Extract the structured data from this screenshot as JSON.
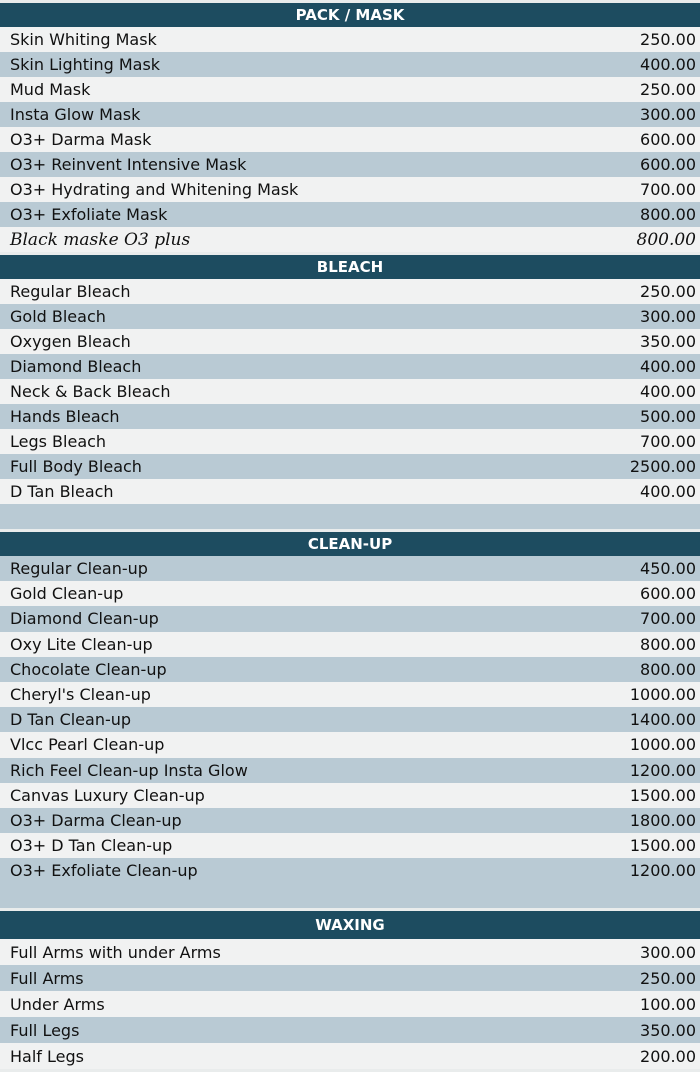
{
  "sections": [
    {
      "title": "PACK / MASK",
      "items": [
        {
          "name": "Skin Whiting Mask",
          "price": "250.00"
        },
        {
          "name": "Skin Lighting Mask",
          "price": "400.00"
        },
        {
          "name": "Mud Mask",
          "price": "250.00"
        },
        {
          "name": "Insta Glow Mask",
          "price": "300.00"
        },
        {
          "name": "O3+ Darma Mask",
          "price": "600.00"
        },
        {
          "name": "O3+ Reinvent Intensive Mask",
          "price": "600.00"
        },
        {
          "name": "O3+ Hydrating and Whitening Mask",
          "price": "700.00"
        },
        {
          "name": "O3+ Exfoliate Mask",
          "price": "800.00"
        },
        {
          "name": "Black maske O3 plus",
          "price": "800.00",
          "handwritten": true
        }
      ]
    },
    {
      "title": "BLEACH",
      "items": [
        {
          "name": "Regular Bleach",
          "price": "250.00"
        },
        {
          "name": "Gold Bleach",
          "price": "300.00"
        },
        {
          "name": "Oxygen Bleach",
          "price": "350.00"
        },
        {
          "name": "Diamond Bleach",
          "price": "400.00"
        },
        {
          "name": "Neck & Back Bleach",
          "price": "400.00"
        },
        {
          "name": "Hands Bleach",
          "price": "500.00"
        },
        {
          "name": "Legs Bleach",
          "price": "700.00"
        },
        {
          "name": "Full Body Bleach",
          "price": "2500.00"
        },
        {
          "name": "D Tan Bleach",
          "price": "400.00"
        }
      ]
    },
    {
      "title": "CLEAN-UP",
      "items": [
        {
          "name": "Regular Clean-up",
          "price": "450.00"
        },
        {
          "name": "Gold Clean-up",
          "price": "600.00"
        },
        {
          "name": "Diamond Clean-up",
          "price": "700.00"
        },
        {
          "name": "Oxy Lite Clean-up",
          "price": "800.00"
        },
        {
          "name": "Chocolate Clean-up",
          "price": "800.00"
        },
        {
          "name": "Cheryl's Clean-up",
          "price": "1000.00"
        },
        {
          "name": "D Tan Clean-up",
          "price": "1400.00"
        },
        {
          "name": "Vlcc Pearl Clean-up",
          "price": "1000.00"
        },
        {
          "name": "Rich Feel Clean-up Insta Glow",
          "price": "1200.00"
        },
        {
          "name": "Canvas Luxury Clean-up",
          "price": "1500.00"
        },
        {
          "name": "O3+ Darma Clean-up",
          "price": "1800.00"
        },
        {
          "name": "O3+ D Tan Clean-up",
          "price": "1500.00"
        },
        {
          "name": "O3+ Exfoliate Clean-up",
          "price": "1200.00"
        }
      ]
    },
    {
      "title": "WAXING",
      "items": [
        {
          "name": "Full Arms with under Arms",
          "price": "300.00"
        },
        {
          "name": "Full Arms",
          "price": "250.00"
        },
        {
          "name": "Under Arms",
          "price": "100.00"
        },
        {
          "name": "Full Legs",
          "price": "350.00"
        },
        {
          "name": "Half Legs",
          "price": "200.00"
        }
      ]
    }
  ],
  "colors": {
    "header": "#1d4c60",
    "row_light": "#f1f2f2",
    "row_shaded": "#b9cad4"
  }
}
